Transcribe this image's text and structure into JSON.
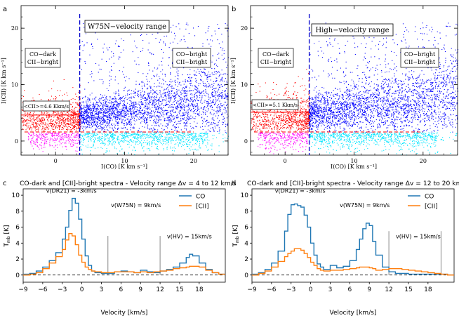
{
  "chart_data": [
    {
      "id": "a",
      "type": "scatter",
      "panel_label": "a",
      "title": "W75N−velocity range",
      "xlabel": "I(CO)  [K km s⁻¹]",
      "ylabel": "I(CII)  [K km s⁻¹]",
      "xlim": [
        -5,
        25
      ],
      "ylim": [
        -2.5,
        24
      ],
      "xticks": [
        0,
        10,
        20
      ],
      "yticks": [
        0,
        10,
        20
      ],
      "dark_label": [
        "CO−dark",
        "CII−bright"
      ],
      "bright_label": [
        "CO−bright",
        "CII−bright"
      ],
      "mean_label": "<CII>=4.6 Kkm/s",
      "mean_value": 4.6,
      "co_cut": 3.5,
      "cii_cut": 1.6,
      "colors": {
        "dark": "#ff0000",
        "bright": "#0000ff",
        "cyan": "#00e5ff",
        "magenta": "#ff00ff"
      }
    },
    {
      "id": "b",
      "type": "scatter",
      "panel_label": "b",
      "title": "High−velocity range",
      "xlabel": "I(CO)  [K km s⁻¹]",
      "ylabel": "I(CII)  [K km s⁻¹]",
      "xlim": [
        -5,
        25
      ],
      "ylim": [
        -2.5,
        24
      ],
      "xticks": [
        0,
        10,
        20
      ],
      "yticks": [
        0,
        10,
        20
      ],
      "dark_label": [
        "CO−dark",
        "CII−bright"
      ],
      "bright_label": [
        "CO−bright",
        "CII−bright"
      ],
      "mean_label": "<CII>=5.1 Kkm/s",
      "mean_value": 5.1,
      "co_cut": 3.5,
      "cii_cut": 1.6,
      "colors": {
        "dark": "#ff0000",
        "bright": "#0000ff",
        "cyan": "#00e5ff",
        "magenta": "#ff00ff"
      }
    },
    {
      "id": "c",
      "type": "line",
      "panel_label": "c",
      "title": "CO-dark and [CII]-bright spectra - Velocity range Δv = 4 to 12 km/s",
      "xlabel": "Velocity [km/s]",
      "ylabel": "T_mb [K]",
      "xlim": [
        -9,
        22
      ],
      "ylim": [
        -0.9,
        10.8
      ],
      "xticks": [
        -9,
        -6,
        -3,
        0,
        3,
        6,
        9,
        12,
        15,
        18
      ],
      "yticks": [
        0,
        2,
        4,
        6,
        8,
        10
      ],
      "legend": "top-right",
      "annotations": [
        {
          "text": "v(DR21) = -3km/s",
          "x": -1.6,
          "y": 10.3
        },
        {
          "text": "v(W75N) =  9km/s",
          "x": 8.3,
          "y": 8.5
        },
        {
          "text": "v(HV) = 15km/s",
          "x": 16.5,
          "y": 4.6
        }
      ],
      "markers": [
        4,
        12
      ],
      "marker_top": 4.9,
      "x": [
        -9,
        -8,
        -7,
        -6,
        -5,
        -4,
        -3,
        -2.5,
        -2,
        -1.5,
        -1,
        -0.5,
        0,
        0.5,
        1,
        1.5,
        2,
        3,
        4,
        5,
        6,
        7,
        8,
        9,
        10,
        11,
        12,
        13,
        14,
        15,
        16,
        16.5,
        17,
        18,
        19,
        20,
        21
      ],
      "series": [
        {
          "name": "CO",
          "color": "#1f77b4",
          "values": [
            0.1,
            0.2,
            0.5,
            1.0,
            1.8,
            2.8,
            4.5,
            6.0,
            8.1,
            9.6,
            9.0,
            7.0,
            4.5,
            2.4,
            1.2,
            0.5,
            0.3,
            0.2,
            0.2,
            0.4,
            0.5,
            0.4,
            0.3,
            0.6,
            0.4,
            0.3,
            0.5,
            0.7,
            1.0,
            1.5,
            2.2,
            2.6,
            2.4,
            1.5,
            0.7,
            0.3,
            0.1
          ]
        },
        {
          "name": "[CII]",
          "color": "#ff7f0e",
          "values": [
            0.0,
            0.1,
            0.3,
            0.8,
            1.5,
            2.3,
            3.2,
            4.4,
            5.2,
            4.9,
            3.8,
            2.5,
            1.6,
            1.0,
            0.7,
            0.5,
            0.4,
            0.3,
            0.3,
            0.4,
            0.4,
            0.4,
            0.3,
            0.4,
            0.3,
            0.4,
            0.5,
            0.6,
            0.8,
            0.9,
            1.0,
            1.1,
            1.1,
            1.0,
            0.6,
            0.3,
            0.1
          ]
        }
      ]
    },
    {
      "id": "d",
      "type": "line",
      "panel_label": "d",
      "title": "CO-dark and [CII]-bright spectra - Velocity range Δv = 12 to 20 km/s",
      "xlabel": "Velocity [km/s]",
      "ylabel": "T_mb [K]",
      "xlim": [
        -9,
        22
      ],
      "ylim": [
        -0.9,
        10.8
      ],
      "xticks": [
        -9,
        -6,
        -3,
        0,
        3,
        6,
        9,
        12,
        15,
        18
      ],
      "yticks": [
        0,
        2,
        4,
        6,
        8,
        10
      ],
      "legend": "top-right",
      "annotations": [
        {
          "text": "v(DR21) = -3km/s",
          "x": -1.6,
          "y": 10.3
        },
        {
          "text": "v(W75N) =  9km/s",
          "x": 8.3,
          "y": 8.5
        },
        {
          "text": "v(HV) = 15km/s",
          "x": 16.5,
          "y": 4.6
        }
      ],
      "markers": [
        12,
        20
      ],
      "marker_top": 5.5,
      "x": [
        -9,
        -8,
        -7,
        -6,
        -5,
        -4,
        -3.5,
        -3,
        -2.5,
        -2,
        -1.5,
        -1,
        -0.5,
        0,
        0.5,
        1,
        1.5,
        2,
        3,
        4,
        5,
        6,
        7,
        7.5,
        8,
        8.5,
        9,
        9.5,
        10,
        11,
        12,
        13,
        14,
        15,
        16,
        17,
        18,
        19,
        20,
        21
      ],
      "series": [
        {
          "name": "CO",
          "color": "#1f77b4",
          "values": [
            0.1,
            0.3,
            0.7,
            1.5,
            3.0,
            5.5,
            7.6,
            8.8,
            8.9,
            8.7,
            8.5,
            7.5,
            6.0,
            4.0,
            2.5,
            1.4,
            1.0,
            0.7,
            1.2,
            0.9,
            1.1,
            1.8,
            3.2,
            4.5,
            5.8,
            6.5,
            6.2,
            4.2,
            2.5,
            1.0,
            0.4,
            0.2,
            0.2,
            0.1,
            0.1,
            0.1,
            0.1,
            0.1,
            0.1,
            0.0
          ]
        },
        {
          "name": "[CII]",
          "color": "#ff7f0e",
          "values": [
            0.0,
            0.2,
            0.5,
            1.0,
            1.7,
            2.3,
            2.7,
            3.0,
            3.3,
            3.3,
            3.1,
            2.7,
            2.2,
            1.6,
            1.2,
            0.8,
            0.6,
            0.5,
            0.6,
            0.6,
            0.7,
            0.8,
            0.9,
            1.0,
            1.0,
            1.0,
            0.9,
            0.8,
            0.6,
            0.7,
            0.8,
            0.8,
            0.7,
            0.6,
            0.5,
            0.4,
            0.3,
            0.2,
            0.1,
            0.0
          ]
        }
      ]
    }
  ]
}
